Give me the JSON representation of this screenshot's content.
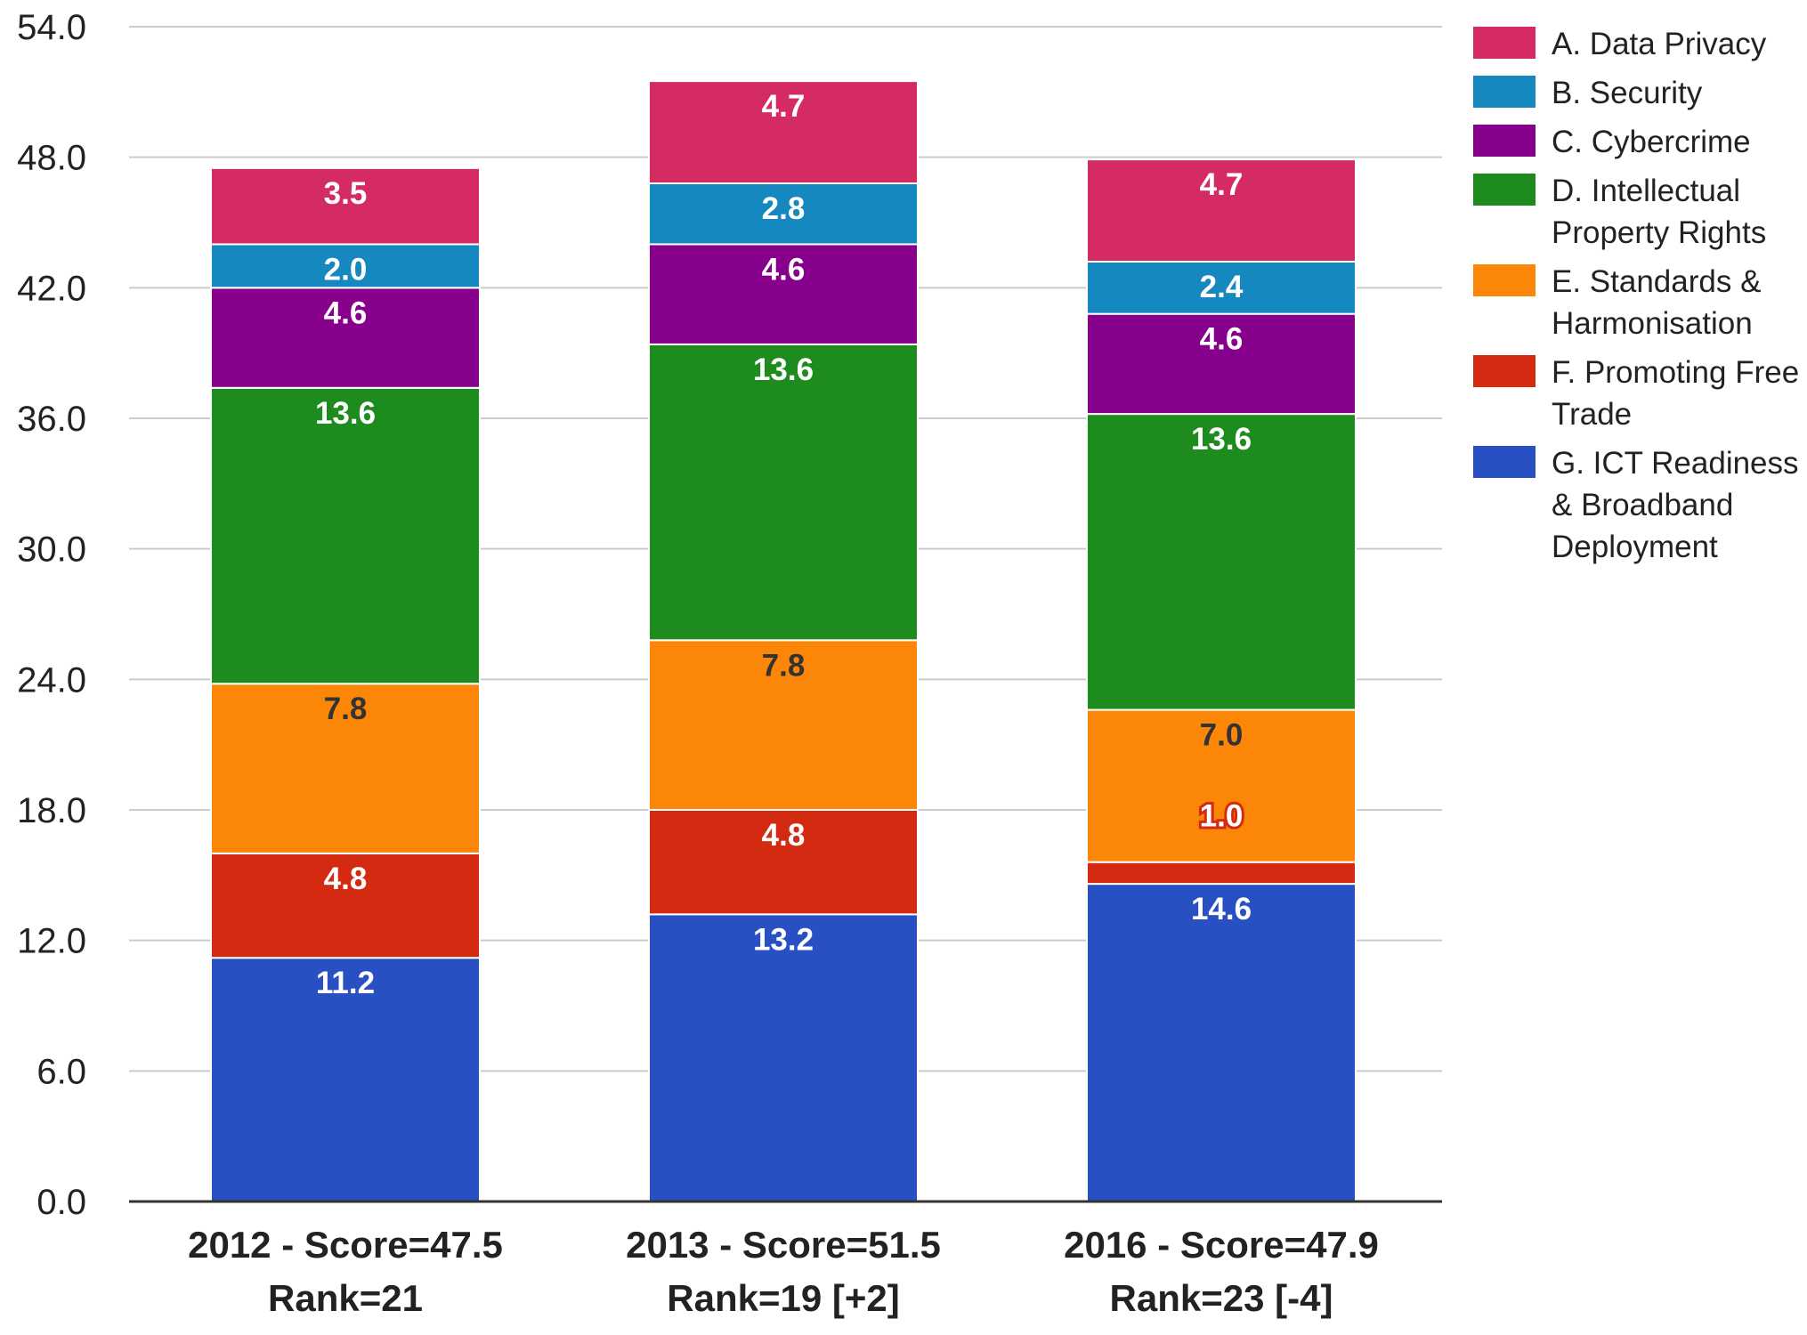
{
  "chart_data": {
    "type": "bar",
    "stacked": true,
    "title": "",
    "xlabel": "",
    "ylabel": "",
    "ylim": [
      0,
      54
    ],
    "yticks": [
      "0.0",
      "6.0",
      "12.0",
      "18.0",
      "24.0",
      "30.0",
      "36.0",
      "42.0",
      "48.0",
      "54.0"
    ],
    "grid": true,
    "legend_position": "right",
    "categories": [
      [
        "2012 - Score=47.5",
        "Rank=21"
      ],
      [
        "2013 - Score=51.5",
        "Rank=19 [+2]"
      ],
      [
        "2016 - Score=47.9",
        "Rank=23 [-4]"
      ]
    ],
    "series": [
      {
        "name": "G. ICT Readiness & Broadband Deployment",
        "legend_lines": [
          "G. ICT Readiness",
          "& Broadband",
          "Deployment"
        ],
        "color": "#2850c3",
        "label_color": "#ffffff",
        "values": [
          11.2,
          13.2,
          14.6
        ],
        "labels": [
          "11.2",
          "13.2",
          "14.6"
        ]
      },
      {
        "name": "F. Promoting Free Trade",
        "legend_lines": [
          "F. Promoting Free",
          "Trade"
        ],
        "color": "#d42a12",
        "label_color": "#ffffff",
        "values": [
          4.8,
          4.8,
          1.0
        ],
        "labels": [
          "4.8",
          "4.8",
          "1.0"
        ]
      },
      {
        "name": "E. Standards & Harmonisation",
        "legend_lines": [
          "E. Standards &",
          "Harmonisation"
        ],
        "color": "#fc8608",
        "label_color": "#333333",
        "values": [
          7.8,
          7.8,
          7.0
        ],
        "labels": [
          "7.8",
          "7.8",
          "7.0"
        ]
      },
      {
        "name": "D. Intellectual Property Rights",
        "legend_lines": [
          "D. Intellectual",
          "Property Rights"
        ],
        "color": "#1d8b1d",
        "label_color": "#ffffff",
        "values": [
          13.6,
          13.6,
          13.6
        ],
        "labels": [
          "13.6",
          "13.6",
          "13.6"
        ]
      },
      {
        "name": "C. Cybercrime",
        "legend_lines": [
          "C. Cybercrime"
        ],
        "color": "#87008b",
        "label_color": "#ffffff",
        "values": [
          4.6,
          4.6,
          4.6
        ],
        "labels": [
          "4.6",
          "4.6",
          "4.6"
        ]
      },
      {
        "name": "B. Security",
        "legend_lines": [
          "B. Security"
        ],
        "color": "#1589bf",
        "label_color": "#ffffff",
        "values": [
          2.0,
          2.8,
          2.4
        ],
        "labels": [
          "2.0",
          "2.8",
          "2.4"
        ]
      },
      {
        "name": "A. Data Privacy",
        "legend_lines": [
          "A. Data Privacy"
        ],
        "color": "#d42c62",
        "label_color": "#ffffff",
        "values": [
          3.5,
          4.7,
          4.7
        ],
        "labels": [
          "3.5",
          "4.7",
          "4.7"
        ]
      }
    ],
    "colors": {
      "grid": "#cccccc",
      "axis": "#333333",
      "text": "#222222",
      "background": "#ffffff"
    }
  }
}
